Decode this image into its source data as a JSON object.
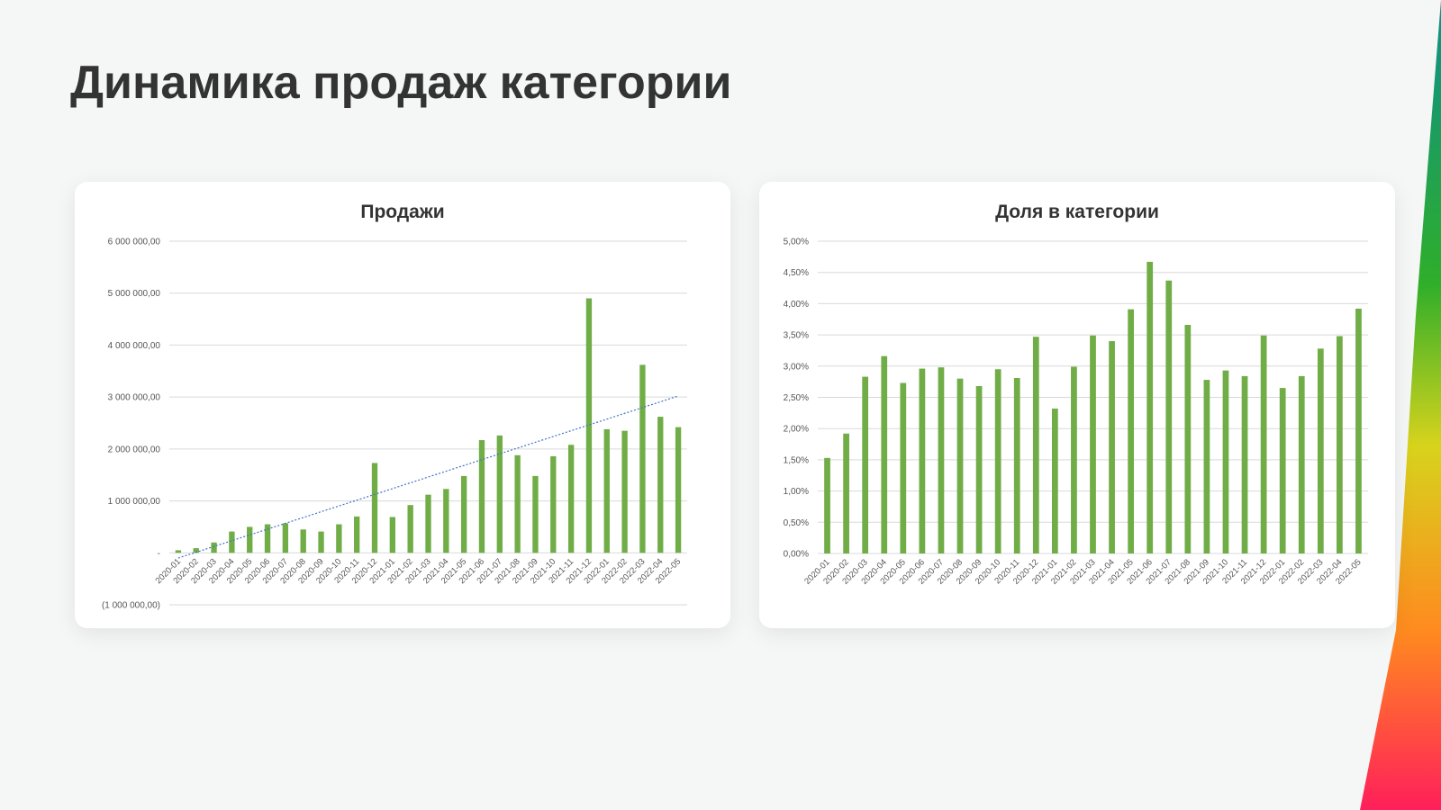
{
  "slide": {
    "title": "Динамика продаж категории"
  },
  "colors": {
    "bar": "#70ad47",
    "grid": "#d9d9d9",
    "trend": "#4472c4"
  },
  "chart_data": [
    {
      "type": "bar",
      "title": "Продажи",
      "xlabel": "",
      "ylabel": "",
      "categories": [
        "2020-01",
        "2020-02",
        "2020-03",
        "2020-04",
        "2020-05",
        "2020-06",
        "2020-07",
        "2020-08",
        "2020-09",
        "2020-10",
        "2020-11",
        "2020-12",
        "2021-01",
        "2021-02",
        "2021-03",
        "2021-04",
        "2021-05",
        "2021-06",
        "2021-07",
        "2021-08",
        "2021-09",
        "2021-10",
        "2021-11",
        "2021-12",
        "2022-01",
        "2022-02",
        "2022-03",
        "2022-04",
        "2022-05"
      ],
      "values": [
        50000,
        90000,
        200000,
        410000,
        500000,
        550000,
        570000,
        450000,
        410000,
        550000,
        700000,
        1730000,
        690000,
        920000,
        1120000,
        1230000,
        1480000,
        2170000,
        2260000,
        1880000,
        1480000,
        1860000,
        2080000,
        4900000,
        2380000,
        2350000,
        3620000,
        2620000,
        2420000
      ],
      "ylim": [
        -1000000,
        6000000
      ],
      "yticks": [
        6000000,
        5000000,
        4000000,
        3000000,
        2000000,
        1000000,
        0,
        -1000000
      ],
      "ytick_labels": [
        "6 000 000,00",
        "5 000 000,00",
        "4 000 000,00",
        "3 000 000,00",
        "2 000 000,00",
        "1 000 000,00",
        "-",
        "(1 000 000,00)"
      ],
      "trendline": {
        "type": "linear",
        "start": -100000,
        "end": 3020000
      },
      "grid": true,
      "legend": "none"
    },
    {
      "type": "bar",
      "title": "Доля в категории",
      "xlabel": "",
      "ylabel": "",
      "categories": [
        "2020-01",
        "2020-02",
        "2020-03",
        "2020-04",
        "2020-05",
        "2020-06",
        "2020-07",
        "2020-08",
        "2020-09",
        "2020-10",
        "2020-11",
        "2020-12",
        "2021-01",
        "2021-02",
        "2021-03",
        "2021-04",
        "2021-05",
        "2021-06",
        "2021-07",
        "2021-08",
        "2021-09",
        "2021-10",
        "2021-11",
        "2021-12",
        "2022-01",
        "2022-02",
        "2022-03",
        "2022-04",
        "2022-05"
      ],
      "values": [
        1.53,
        1.92,
        2.83,
        3.16,
        2.73,
        2.96,
        2.98,
        2.8,
        2.68,
        2.95,
        2.81,
        3.47,
        2.32,
        2.99,
        3.49,
        3.4,
        3.91,
        4.67,
        4.37,
        3.66,
        2.78,
        2.93,
        2.84,
        3.49,
        2.65,
        2.84,
        3.28,
        3.48,
        3.92
      ],
      "ylim": [
        0,
        5
      ],
      "yticks": [
        5,
        4.5,
        4,
        3.5,
        3,
        2.5,
        2,
        1.5,
        1,
        0.5,
        0
      ],
      "ytick_labels": [
        "5,00%",
        "4,50%",
        "4,00%",
        "3,50%",
        "3,00%",
        "2,50%",
        "2,00%",
        "1,50%",
        "1,00%",
        "0,50%",
        "0,00%"
      ],
      "grid": true,
      "legend": "none"
    }
  ]
}
